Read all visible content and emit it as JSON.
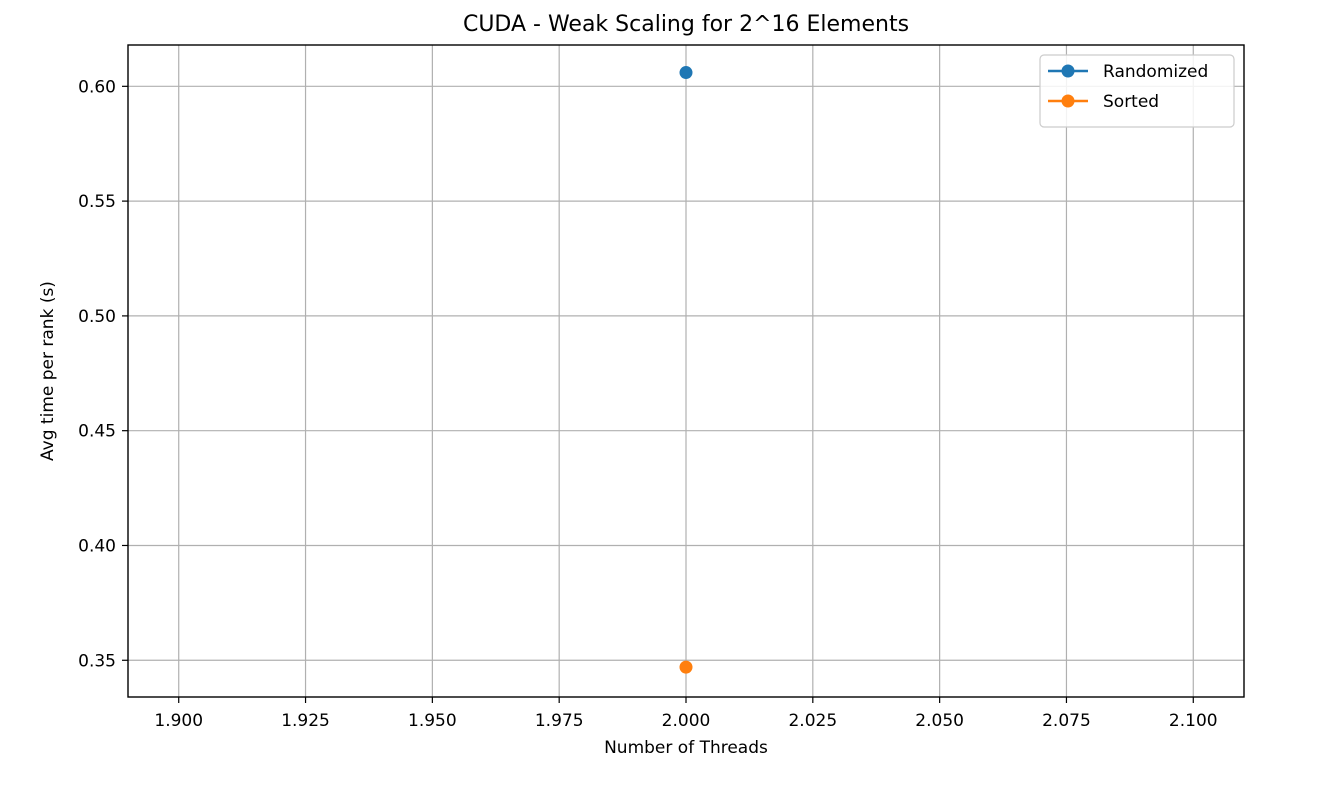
{
  "chart_data": {
    "type": "line",
    "title": "CUDA - Weak Scaling for 2^16 Elements",
    "xlabel": "Number of Threads",
    "ylabel": "Avg time per rank (s)",
    "xlim": [
      1.89,
      2.11
    ],
    "ylim": [
      0.334,
      0.618
    ],
    "xticks": [
      1.9,
      1.925,
      1.95,
      1.975,
      2.0,
      2.025,
      2.05,
      2.075,
      2.1
    ],
    "xtick_labels": [
      "1.900",
      "1.925",
      "1.950",
      "1.975",
      "2.000",
      "2.025",
      "2.050",
      "2.075",
      "2.100"
    ],
    "yticks": [
      0.35,
      0.4,
      0.45,
      0.5,
      0.55,
      0.6
    ],
    "ytick_labels": [
      "0.35",
      "0.40",
      "0.45",
      "0.50",
      "0.55",
      "0.60"
    ],
    "grid": true,
    "legend_position": "top-right",
    "series": [
      {
        "name": "Randomized",
        "color": "#1f77b4",
        "x": [
          2.0
        ],
        "y": [
          0.606
        ]
      },
      {
        "name": "Sorted",
        "color": "#ff7f0e",
        "x": [
          2.0
        ],
        "y": [
          0.347
        ]
      }
    ]
  }
}
